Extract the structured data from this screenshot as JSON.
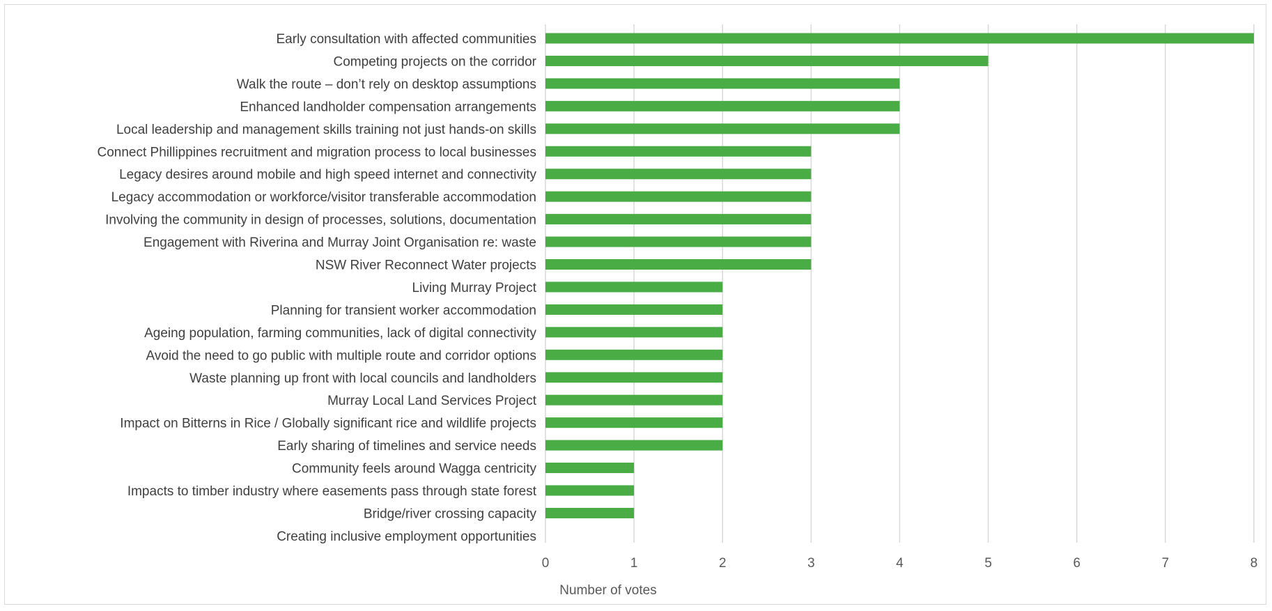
{
  "chart_data": {
    "type": "bar",
    "orientation": "horizontal",
    "categories": [
      "Early consultation with affected communities",
      "Competing projects on the corridor",
      "Walk the route – don’t rely on desktop assumptions",
      "Enhanced landholder compensation arrangements",
      "Local leadership and management skills training not just hands-on skills",
      "Connect Phillippines recruitment and migration process to local businesses",
      "Legacy desires around mobile and high speed internet and connectivity",
      "Legacy accommodation or workforce/visitor transferable accommodation",
      "Involving the community in design of processes, solutions, documentation",
      "Engagement with Riverina and Murray Joint Organisation re: waste",
      "NSW River Reconnect Water projects",
      "Living Murray Project",
      "Planning for transient worker accommodation",
      "Ageing population, farming communities, lack of digital connectivity",
      "Avoid the need to go public with multiple route and corridor options",
      "Waste planning up front with local councils and landholders",
      "Murray Local Land Services Project",
      "Impact on Bitterns in Rice / Globally significant rice and wildlife projects",
      "Early sharing of timelines and service needs",
      "Community feels around Wagga centricity",
      "Impacts to timber industry where easements pass through state forest",
      "Bridge/river crossing capacity",
      "Creating inclusive employment opportunities"
    ],
    "values": [
      8,
      5,
      4,
      4,
      4,
      3,
      3,
      3,
      3,
      3,
      3,
      2,
      2,
      2,
      2,
      2,
      2,
      2,
      2,
      1,
      1,
      1,
      0
    ],
    "xlabel": "Number of votes",
    "ylabel": "",
    "xlim": [
      0,
      8
    ],
    "xticks": [
      "0",
      "1",
      "2",
      "3",
      "4",
      "5",
      "6",
      "7",
      "8"
    ],
    "grid": "vertical",
    "legend": "none",
    "bar_color": "#4aac44",
    "grid_color": "#d9d9d9"
  }
}
